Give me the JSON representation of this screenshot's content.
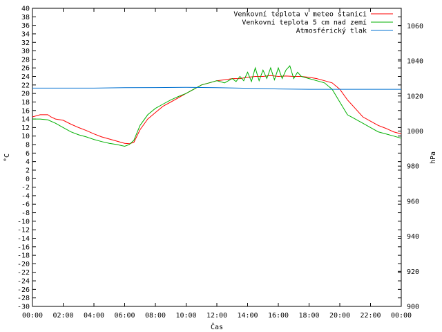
{
  "chart_data": {
    "type": "line",
    "xlabel": "Čas",
    "ylabel_left": "°C",
    "ylabel_right": "hPa",
    "x_ticks": [
      "00:00",
      "02:00",
      "04:00",
      "06:00",
      "08:00",
      "10:00",
      "12:00",
      "14:00",
      "16:00",
      "18:00",
      "20:00",
      "22:00",
      "00:00"
    ],
    "x_range_hours": [
      0,
      24
    ],
    "ylim_left": [
      -30,
      40
    ],
    "y_ticks_left": [
      40,
      38,
      36,
      34,
      32,
      30,
      28,
      26,
      24,
      22,
      20,
      18,
      16,
      14,
      12,
      10,
      8,
      6,
      4,
      2,
      0,
      -2,
      -4,
      -6,
      -8,
      -10,
      -12,
      -14,
      -16,
      -18,
      -20,
      -22,
      -24,
      -26,
      -28,
      -30
    ],
    "ylim_right": [
      900,
      1070
    ],
    "y_ticks_right": [
      1060,
      1040,
      1020,
      1000,
      980,
      960,
      940,
      920,
      900
    ],
    "grid": false,
    "legend_position": "top-right",
    "series": [
      {
        "name": "Venkovní teplota v meteo stanici",
        "axis": "left",
        "color": "#ff0000",
        "x": [
          0,
          0.5,
          1,
          1.2,
          1.5,
          2,
          2.5,
          3,
          3.5,
          4,
          4.5,
          5,
          5.5,
          6,
          6.3,
          6.6,
          7,
          7.5,
          8,
          8.5,
          9,
          9.5,
          10,
          10.5,
          11,
          11.5,
          12,
          12.5,
          13,
          13.5,
          14,
          14.5,
          15,
          15.5,
          16,
          16.5,
          17,
          17.5,
          18,
          18.5,
          19,
          19.5,
          20,
          20.5,
          21,
          21.5,
          22,
          22.5,
          23,
          23.5,
          24
        ],
        "values": [
          14.5,
          15,
          15,
          14.5,
          14,
          13.7,
          12.8,
          12,
          11.3,
          10.5,
          9.8,
          9.3,
          8.8,
          8.3,
          8.2,
          8.5,
          11.5,
          14,
          15.5,
          17,
          18,
          19,
          20,
          21,
          22,
          22.5,
          23,
          23.2,
          23.5,
          23.5,
          23.8,
          24,
          24,
          24.2,
          24,
          24.1,
          24,
          24,
          23.8,
          23.5,
          23,
          22.5,
          21,
          18.5,
          16.5,
          14.5,
          13.5,
          12.5,
          11.8,
          11,
          10.5
        ]
      },
      {
        "name": "Venkovní teplota 5 cm nad zemí",
        "axis": "left",
        "color": "#00b000",
        "x": [
          0,
          0.5,
          1,
          1.5,
          2,
          2.5,
          3,
          3.5,
          4,
          4.5,
          5,
          5.5,
          6,
          6.3,
          6.6,
          7,
          7.5,
          8,
          8.5,
          9,
          9.5,
          10,
          10.5,
          11,
          11.5,
          12,
          12.5,
          13,
          13.25,
          13.5,
          13.75,
          14,
          14.25,
          14.5,
          14.75,
          15,
          15.25,
          15.5,
          15.75,
          16,
          16.25,
          16.5,
          16.75,
          17,
          17.25,
          17.5,
          18,
          18.5,
          19,
          19.5,
          20,
          20.5,
          21,
          21.5,
          22,
          22.5,
          23,
          23.5,
          24
        ],
        "values": [
          14,
          14,
          13.8,
          13,
          12,
          11,
          10.3,
          9.8,
          9.2,
          8.7,
          8.3,
          8,
          7.6,
          8,
          9,
          12.5,
          15,
          16.5,
          17.5,
          18.5,
          19.3,
          20,
          21,
          22,
          22.5,
          23,
          22.5,
          23.5,
          22.8,
          24,
          23,
          25,
          22.8,
          26,
          23,
          25.5,
          23.5,
          26,
          23.2,
          26,
          23.5,
          25.5,
          26.5,
          23.5,
          25,
          24,
          23.5,
          23,
          22.5,
          21,
          18,
          15,
          14,
          13,
          12,
          11,
          10.5,
          10,
          9.5
        ]
      },
      {
        "name": "Atmosférický tlak",
        "axis": "right",
        "color": "#0070d0",
        "x": [
          0,
          2,
          4,
          6,
          8,
          10,
          12,
          14,
          16,
          18,
          20,
          22,
          24
        ],
        "values": [
          1024.5,
          1024.5,
          1024.5,
          1024.7,
          1024.8,
          1024.9,
          1024.7,
          1024.4,
          1024.0,
          1023.8,
          1023.8,
          1023.8,
          1023.8
        ]
      }
    ]
  }
}
